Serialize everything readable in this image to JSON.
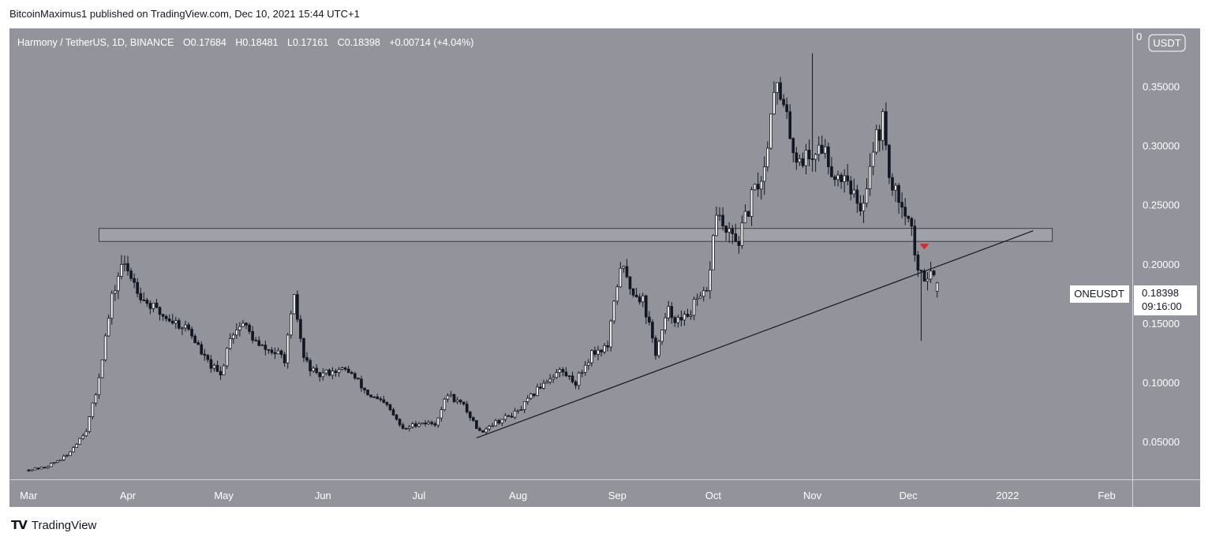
{
  "header": {
    "caption": "BitcoinMaximus1 published on TradingView.com, Dec 10, 2021 15:44 UTC+1"
  },
  "legend": {
    "symbol": "Harmony / TetherUS, 1D, BINANCE",
    "o_label": "O",
    "o_value": "0.17684",
    "h_label": "H",
    "h_value": "0.18481",
    "l_label": "L",
    "l_value": "0.17161",
    "c_label": "C",
    "c_value": "0.18398",
    "change": "+0.00714 (+4.04%)"
  },
  "price_axis": {
    "currency_button": "USDT",
    "top_tick": "0",
    "ticks": [
      {
        "value": 0.35,
        "label": "0.35000"
      },
      {
        "value": 0.3,
        "label": "0.30000"
      },
      {
        "value": 0.25,
        "label": "0.25000"
      },
      {
        "value": 0.2,
        "label": "0.20000"
      },
      {
        "value": 0.15,
        "label": "0.15000"
      },
      {
        "value": 0.1,
        "label": "0.10000"
      },
      {
        "value": 0.05,
        "label": "0.05000"
      }
    ],
    "symbol_tag": "ONEUSDT",
    "last_price": "0.18398",
    "countdown": "09:16:00"
  },
  "time_axis": {
    "labels": [
      {
        "label": "Mar",
        "day": 0
      },
      {
        "label": "Apr",
        "day": 31
      },
      {
        "label": "May",
        "day": 61
      },
      {
        "label": "Jun",
        "day": 92
      },
      {
        "label": "Jul",
        "day": 122
      },
      {
        "label": "Aug",
        "day": 153
      },
      {
        "label": "Sep",
        "day": 184
      },
      {
        "label": "Oct",
        "day": 214
      },
      {
        "label": "Nov",
        "day": 245
      },
      {
        "label": "Dec",
        "day": 275
      },
      {
        "label": "2022",
        "day": 306
      },
      {
        "label": "Feb",
        "day": 337
      }
    ]
  },
  "colors": {
    "background": "#93949b",
    "line": "#131722",
    "accent_marker": "#e0242a",
    "zone": "#a0a1a8"
  },
  "chart_data": {
    "type": "candlestick",
    "symbol": "ONEUSDT",
    "interval": "1D",
    "exchange": "BINANCE",
    "x_unit": "days since Mar 1, 2021",
    "ylim": [
      0.018,
      0.399
    ],
    "xlim": [
      -6,
      345
    ],
    "support_resistance_zone": {
      "low": 0.219,
      "high": 0.23,
      "start_day": 22,
      "end_day": 320
    },
    "ascending_trendline": {
      "start": {
        "day": 140,
        "price": 0.053
      },
      "end": {
        "day": 314,
        "price": 0.228
      }
    },
    "bearish_marker": {
      "day": 280,
      "price": 0.215
    },
    "last_close": 0.18398,
    "anchors": [
      {
        "day": 0,
        "price": 0.026
      },
      {
        "day": 5,
        "price": 0.028
      },
      {
        "day": 12,
        "price": 0.038
      },
      {
        "day": 18,
        "price": 0.06
      },
      {
        "day": 21,
        "price": 0.09
      },
      {
        "day": 26,
        "price": 0.17
      },
      {
        "day": 29,
        "price": 0.2
      },
      {
        "day": 32,
        "price": 0.19
      },
      {
        "day": 36,
        "price": 0.17
      },
      {
        "day": 40,
        "price": 0.16
      },
      {
        "day": 45,
        "price": 0.152
      },
      {
        "day": 50,
        "price": 0.145
      },
      {
        "day": 55,
        "price": 0.12
      },
      {
        "day": 60,
        "price": 0.105
      },
      {
        "day": 63,
        "price": 0.14
      },
      {
        "day": 67,
        "price": 0.15
      },
      {
        "day": 72,
        "price": 0.13
      },
      {
        "day": 77,
        "price": 0.125
      },
      {
        "day": 80,
        "price": 0.12
      },
      {
        "day": 83,
        "price": 0.17
      },
      {
        "day": 86,
        "price": 0.12
      },
      {
        "day": 90,
        "price": 0.105
      },
      {
        "day": 95,
        "price": 0.11
      },
      {
        "day": 100,
        "price": 0.11
      },
      {
        "day": 106,
        "price": 0.09
      },
      {
        "day": 112,
        "price": 0.08
      },
      {
        "day": 117,
        "price": 0.06
      },
      {
        "day": 122,
        "price": 0.066
      },
      {
        "day": 127,
        "price": 0.065
      },
      {
        "day": 131,
        "price": 0.09
      },
      {
        "day": 136,
        "price": 0.08
      },
      {
        "day": 141,
        "price": 0.058
      },
      {
        "day": 145,
        "price": 0.065
      },
      {
        "day": 153,
        "price": 0.075
      },
      {
        "day": 161,
        "price": 0.1
      },
      {
        "day": 166,
        "price": 0.11
      },
      {
        "day": 171,
        "price": 0.1
      },
      {
        "day": 176,
        "price": 0.125
      },
      {
        "day": 181,
        "price": 0.13
      },
      {
        "day": 185,
        "price": 0.2
      },
      {
        "day": 188,
        "price": 0.18
      },
      {
        "day": 192,
        "price": 0.17
      },
      {
        "day": 196,
        "price": 0.125
      },
      {
        "day": 200,
        "price": 0.16
      },
      {
        "day": 204,
        "price": 0.15
      },
      {
        "day": 208,
        "price": 0.165
      },
      {
        "day": 212,
        "price": 0.175
      },
      {
        "day": 215,
        "price": 0.245
      },
      {
        "day": 218,
        "price": 0.225
      },
      {
        "day": 222,
        "price": 0.22
      },
      {
        "day": 226,
        "price": 0.255
      },
      {
        "day": 230,
        "price": 0.28
      },
      {
        "day": 233,
        "price": 0.355
      },
      {
        "day": 236,
        "price": 0.33
      },
      {
        "day": 240,
        "price": 0.29
      },
      {
        "day": 244,
        "price": 0.29
      },
      {
        "day": 248,
        "price": 0.3
      },
      {
        "day": 252,
        "price": 0.275
      },
      {
        "day": 256,
        "price": 0.275
      },
      {
        "day": 260,
        "price": 0.24
      },
      {
        "day": 264,
        "price": 0.3
      },
      {
        "day": 267,
        "price": 0.32
      },
      {
        "day": 270,
        "price": 0.26
      },
      {
        "day": 273,
        "price": 0.255
      },
      {
        "day": 276,
        "price": 0.23
      },
      {
        "day": 278,
        "price": 0.19
      },
      {
        "day": 280,
        "price": 0.19
      },
      {
        "day": 282,
        "price": 0.195
      },
      {
        "day": 284,
        "price": 0.18398
      }
    ]
  }
}
